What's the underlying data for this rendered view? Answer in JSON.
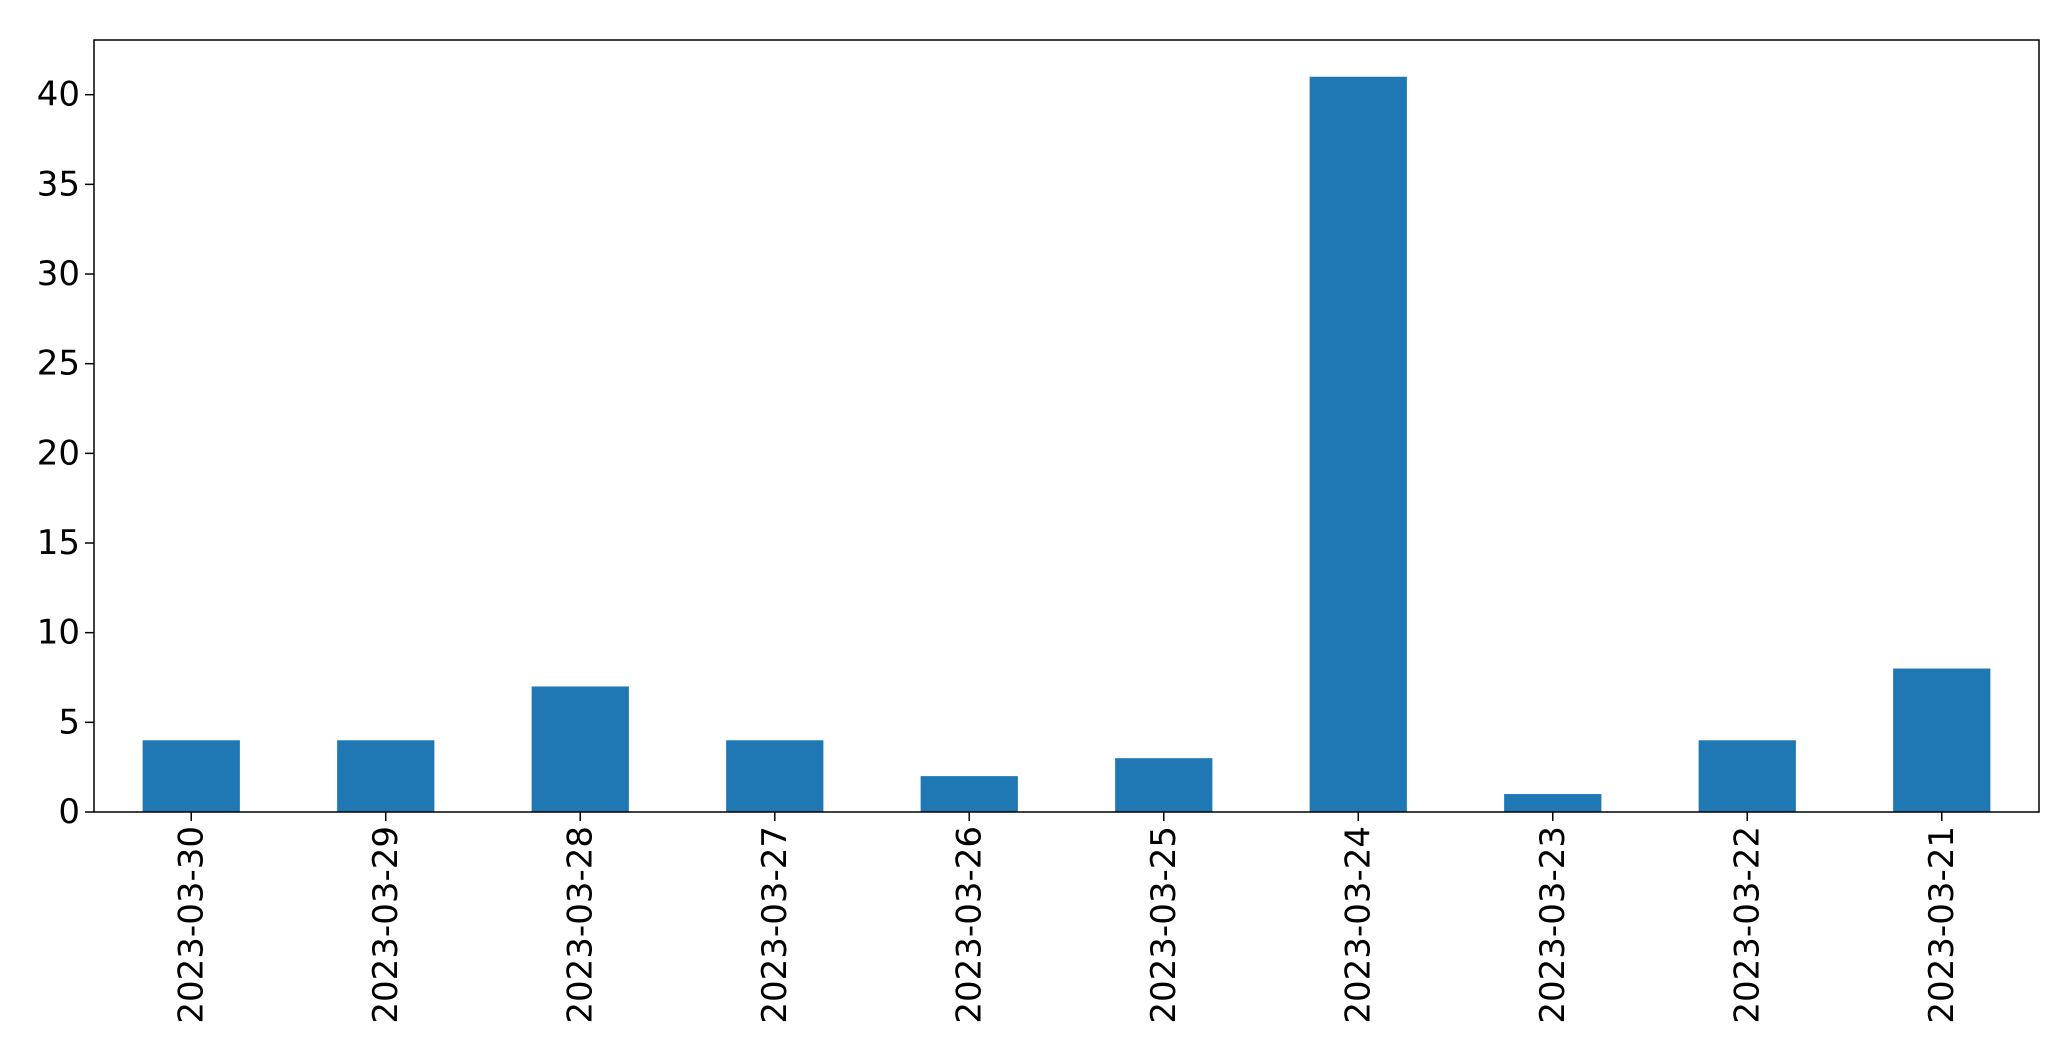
{
  "chart_data": {
    "type": "bar",
    "title": "",
    "xlabel": "",
    "ylabel": "",
    "categories": [
      "2023-03-30",
      "2023-03-29",
      "2023-03-28",
      "2023-03-27",
      "2023-03-26",
      "2023-03-25",
      "2023-03-24",
      "2023-03-23",
      "2023-03-22",
      "2023-03-21"
    ],
    "values": [
      4,
      4,
      7,
      4,
      2,
      3,
      41,
      1,
      4,
      8
    ],
    "ylim": [
      0,
      43.05
    ],
    "yticks": [
      0,
      5,
      10,
      15,
      20,
      25,
      30,
      35,
      40
    ],
    "grid": false,
    "bar_color": "#1f77b4"
  }
}
